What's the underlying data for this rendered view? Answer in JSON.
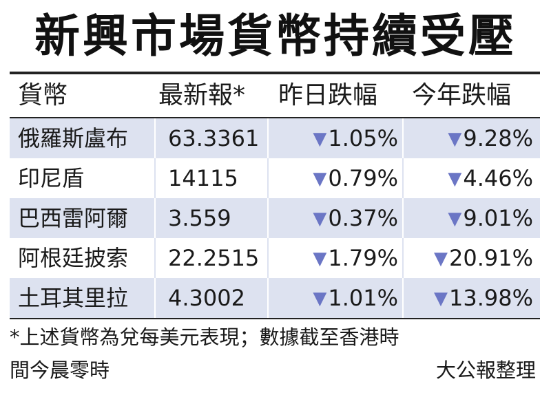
{
  "title": "新興市場貨幣持續受壓",
  "columns": {
    "currency": "貨幣",
    "latest": "最新報*",
    "prev_day_drop": "昨日跌幅",
    "ytd_drop": "今年跌幅"
  },
  "arrow_symbol": "▼",
  "rows": [
    {
      "currency": "俄羅斯盧布",
      "latest": "63.3361",
      "prev_day_drop": "1.05%",
      "ytd_drop": "9.28%"
    },
    {
      "currency": "印尼盾",
      "latest": "14115",
      "prev_day_drop": "0.79%",
      "ytd_drop": "4.46%"
    },
    {
      "currency": "巴西雷阿爾",
      "latest": "3.559",
      "prev_day_drop": "0.37%",
      "ytd_drop": "9.01%"
    },
    {
      "currency": "阿根廷披索",
      "latest": "22.2515",
      "prev_day_drop": "1.79%",
      "ytd_drop": "20.91%"
    },
    {
      "currency": "土耳其里拉",
      "latest": "4.3002",
      "prev_day_drop": "1.01%",
      "ytd_drop": "13.98%"
    }
  ],
  "footnote": {
    "line1": "*上述貨幣為兌每美元表現；數據截至香港時",
    "line2": "間今晨零時"
  },
  "credit": "大公報整理",
  "colors": {
    "row_shade": "#dde2f0",
    "arrow": "#6b76c5",
    "rule": "#222222"
  }
}
